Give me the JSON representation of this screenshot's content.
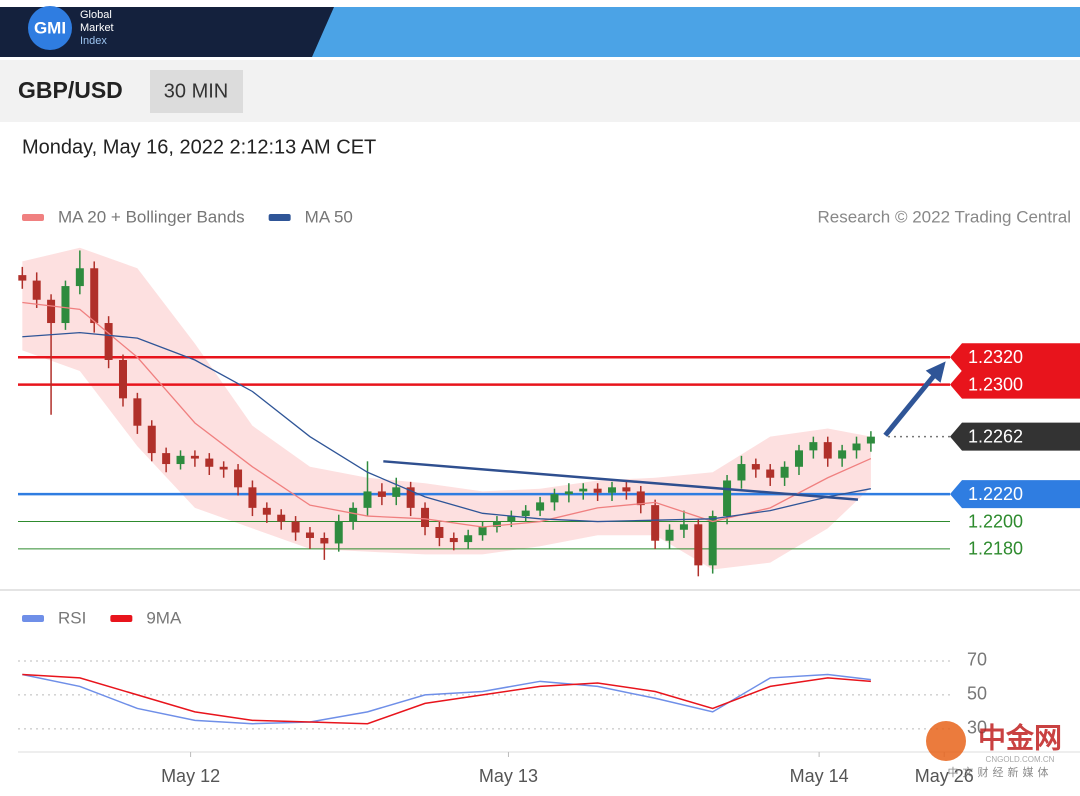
{
  "header": {
    "logo": {
      "mark": "GMI",
      "lines": [
        "Global",
        "Market",
        "Index"
      ]
    },
    "symbol": "GBP/USD",
    "interval": "30 MIN",
    "timestamp": "Monday, May 16, 2022 2:12:13 AM CET"
  },
  "watermark": {
    "name": "中金网",
    "url": "CNGOLD.COM.CN",
    "tagline": "中文财经新媒体"
  },
  "chart_data": [
    {
      "type": "candlestick",
      "credit": "Research © 2022 Trading Central",
      "up_color": "#2e8b3e",
      "down_color": "#b0302a",
      "open": [
        1.238,
        1.2376,
        1.2362,
        1.2345,
        1.2372,
        1.2385,
        1.2345,
        1.2318,
        1.229,
        1.227,
        1.225,
        1.2242,
        1.2248,
        1.2246,
        1.224,
        1.2238,
        1.2225,
        1.221,
        1.2205,
        1.22,
        1.2192,
        1.2188,
        1.2184,
        1.22,
        1.221,
        1.2222,
        1.2218,
        1.2225,
        1.221,
        1.2196,
        1.2188,
        1.2185,
        1.219,
        1.2196,
        1.22,
        1.2204,
        1.2208,
        1.2214,
        1.222,
        1.2222,
        1.2224,
        1.2221,
        1.2225,
        1.2222,
        1.2212,
        1.2186,
        1.2194,
        1.2198,
        1.2168,
        1.2204,
        1.223,
        1.2242,
        1.2238,
        1.2232,
        1.224,
        1.2252,
        1.2258,
        1.2246,
        1.2252,
        1.2257
      ],
      "high": [
        1.2386,
        1.2382,
        1.2366,
        1.2376,
        1.2398,
        1.239,
        1.235,
        1.2322,
        1.2294,
        1.2274,
        1.2254,
        1.2252,
        1.2252,
        1.225,
        1.2244,
        1.2242,
        1.223,
        1.2214,
        1.2209,
        1.2204,
        1.2196,
        1.2192,
        1.2205,
        1.2214,
        1.2244,
        1.2228,
        1.2232,
        1.2229,
        1.2214,
        1.22,
        1.2192,
        1.2194,
        1.22,
        1.2204,
        1.2208,
        1.2212,
        1.2218,
        1.2224,
        1.2228,
        1.2228,
        1.2228,
        1.2229,
        1.2229,
        1.2226,
        1.2216,
        1.2198,
        1.2208,
        1.2202,
        1.2208,
        1.2234,
        1.2248,
        1.2246,
        1.2242,
        1.2244,
        1.2256,
        1.2262,
        1.2262,
        1.2256,
        1.2262,
        1.2266
      ],
      "low": [
        1.237,
        1.2356,
        1.2278,
        1.234,
        1.2366,
        1.2338,
        1.2312,
        1.2284,
        1.2264,
        1.2244,
        1.2236,
        1.2238,
        1.224,
        1.2234,
        1.2232,
        1.2219,
        1.2204,
        1.2199,
        1.2194,
        1.2186,
        1.218,
        1.2172,
        1.2178,
        1.2194,
        1.2204,
        1.2212,
        1.2212,
        1.2204,
        1.219,
        1.2182,
        1.2179,
        1.218,
        1.2186,
        1.2192,
        1.2196,
        1.22,
        1.2204,
        1.2208,
        1.2214,
        1.2216,
        1.2215,
        1.2215,
        1.2216,
        1.2206,
        1.218,
        1.218,
        1.2188,
        1.216,
        1.2162,
        1.2198,
        1.2224,
        1.2232,
        1.2226,
        1.2226,
        1.2234,
        1.2246,
        1.224,
        1.224,
        1.2246,
        1.2251
      ],
      "close": [
        1.2376,
        1.2362,
        1.2345,
        1.2372,
        1.2385,
        1.2345,
        1.2318,
        1.229,
        1.227,
        1.225,
        1.2242,
        1.2248,
        1.2246,
        1.224,
        1.2238,
        1.2225,
        1.221,
        1.2205,
        1.22,
        1.2192,
        1.2188,
        1.2184,
        1.22,
        1.221,
        1.2222,
        1.2218,
        1.2225,
        1.221,
        1.2196,
        1.2188,
        1.2185,
        1.219,
        1.2196,
        1.22,
        1.2204,
        1.2208,
        1.2214,
        1.222,
        1.2222,
        1.2224,
        1.2221,
        1.2225,
        1.2222,
        1.2212,
        1.2186,
        1.2194,
        1.2198,
        1.2168,
        1.2204,
        1.223,
        1.2242,
        1.2238,
        1.2232,
        1.224,
        1.2252,
        1.2258,
        1.2246,
        1.2252,
        1.2257,
        1.2262
      ],
      "indicator_x": [
        0,
        4,
        8,
        12,
        16,
        20,
        24,
        28,
        32,
        36,
        40,
        44,
        48,
        52,
        56,
        59
      ],
      "series": [
        {
          "name": "MA 20 + Bollinger Bands",
          "color": "#f08080",
          "band_color": "#fde0e0",
          "values": [
            1.236,
            1.2355,
            1.232,
            1.2272,
            1.224,
            1.2212,
            1.2204,
            1.2202,
            1.2196,
            1.22,
            1.221,
            1.2214,
            1.22,
            1.221,
            1.2232,
            1.2246
          ],
          "upper": [
            1.239,
            1.24,
            1.2385,
            1.233,
            1.227,
            1.224,
            1.2232,
            1.2228,
            1.2222,
            1.2224,
            1.223,
            1.2232,
            1.2236,
            1.2262,
            1.2268,
            1.2262
          ],
          "lower": [
            1.2325,
            1.231,
            1.2255,
            1.221,
            1.2195,
            1.218,
            1.2178,
            1.2176,
            1.2176,
            1.2182,
            1.219,
            1.219,
            1.2165,
            1.217,
            1.2195,
            1.2225
          ]
        },
        {
          "name": "MA 50",
          "color": "#2f5597",
          "values": [
            1.2335,
            1.2338,
            1.2334,
            1.2318,
            1.2295,
            1.2262,
            1.2236,
            1.2218,
            1.2206,
            1.2202,
            1.22,
            1.2201,
            1.2202,
            1.2208,
            1.2218,
            1.2224
          ]
        }
      ],
      "levels": [
        {
          "value": 1.232,
          "label": "1.2320",
          "color": "#e8141c",
          "style": "solid",
          "boxed": true
        },
        {
          "value": 1.23,
          "label": "1.2300",
          "color": "#e8141c",
          "style": "solid",
          "boxed": true
        },
        {
          "value": 1.2262,
          "label": "1.2262",
          "color": "#333333",
          "style": "dotted",
          "boxed": true
        },
        {
          "value": 1.222,
          "label": "1.2220",
          "color": "#2f7de1",
          "style": "solid",
          "boxed": true
        },
        {
          "value": 1.22,
          "label": "1.2200",
          "color": "#2e8b2e",
          "style": "thin",
          "boxed": false
        },
        {
          "value": 1.218,
          "label": "1.2180",
          "color": "#2e8b2e",
          "style": "thin",
          "boxed": false
        }
      ],
      "trendline": {
        "x": [
          25.1,
          58.1
        ],
        "y": [
          1.2244,
          1.2216
        ],
        "color": "#2f4f8f"
      },
      "arrow": {
        "x": [
          60,
          64.2
        ],
        "y": [
          1.2263,
          1.2317
        ],
        "color": "#2f5597"
      },
      "xlim": [
        -0.3,
        64.5
      ],
      "ylim": [
        1.215,
        1.2402
      ]
    },
    {
      "type": "line",
      "x": [
        0,
        4,
        8,
        12,
        16,
        20,
        24,
        28,
        32,
        36,
        40,
        44,
        48,
        52,
        56,
        59
      ],
      "series": [
        {
          "name": "RSI",
          "color": "#6f8fe8",
          "values": [
            62,
            55,
            42,
            35,
            33,
            34,
            40,
            50,
            52,
            58,
            55,
            48,
            40,
            60,
            62,
            59
          ]
        },
        {
          "name": "9MA",
          "color": "#e8141c",
          "values": [
            62,
            60,
            50,
            40,
            35,
            34,
            33,
            45,
            50,
            55,
            57,
            52,
            42,
            55,
            60,
            58
          ]
        }
      ],
      "xlim": [
        -0.3,
        64.5
      ],
      "ylim": [
        24,
        80
      ],
      "yticks": [
        70,
        50,
        30
      ],
      "xticks": [
        {
          "value": 11.7,
          "label": "May 12"
        },
        {
          "value": 33.8,
          "label": "May 13"
        },
        {
          "value": 55.4,
          "label": "May 14"
        },
        {
          "value": 64.1,
          "label": "May 26"
        }
      ]
    }
  ]
}
